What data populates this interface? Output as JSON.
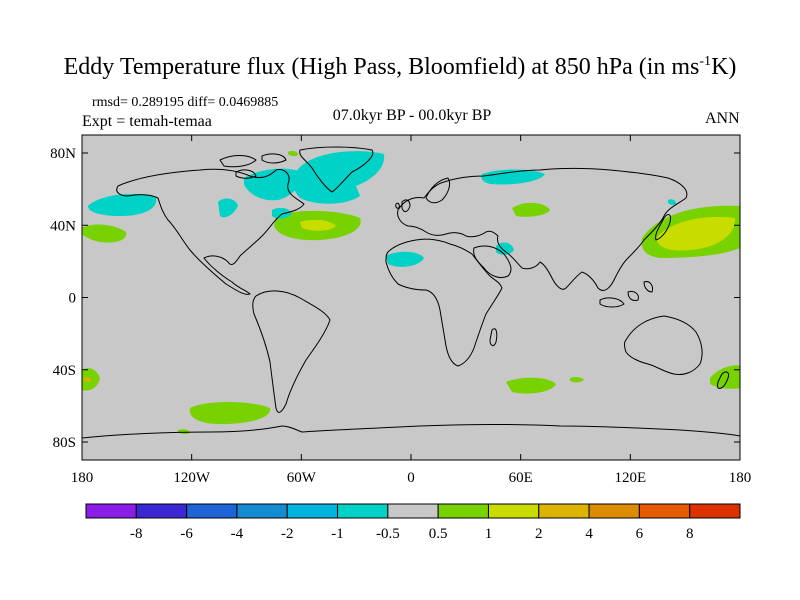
{
  "title": {
    "main": "Eddy Temperature flux (High Pass, Bloomfield) at 850 hPa (in ms",
    "superscript": "-1",
    "tail": "K)"
  },
  "stats_line": "rmsd= 0.289195 diff= 0.0469885",
  "experiment": "Expt = temah-temaa",
  "period": "07.0kyr BP - 00.0kyr BP",
  "season": "ANN",
  "map": {
    "lat_ticks": [
      "80N",
      "40N",
      "0",
      "40S",
      "80S"
    ],
    "lon_ticks": [
      "180",
      "120W",
      "60W",
      "0",
      "60E",
      "120E",
      "180"
    ],
    "ocean_color": "#c8c8c8"
  },
  "colorbar": {
    "colors": [
      "#8b1ee6",
      "#3c28d2",
      "#1e64d7",
      "#148cd2",
      "#00b4dc",
      "#00d2c8",
      "#c8c8c8",
      "#78d200",
      "#c8dc00",
      "#dcb400",
      "#dc8c00",
      "#e65a00",
      "#dc3200"
    ],
    "labels": [
      "-8",
      "-6",
      "-4",
      "-2",
      "-1",
      "-0.5",
      "0.5",
      "1",
      "2",
      "4",
      "6",
      "8"
    ]
  }
}
